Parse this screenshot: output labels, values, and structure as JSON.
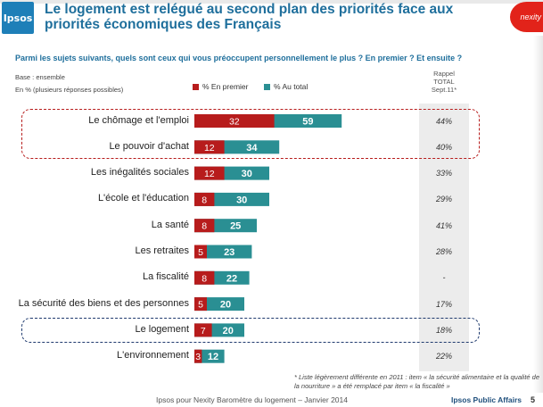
{
  "header": {
    "logo_text": "Ipsos",
    "title": "Le logement est relégué au second plan des priorités face aux priorités économiques des Français",
    "brand_text": "nexity"
  },
  "question": "Parmi les sujets suivants, quels sont ceux qui vous préoccupent personnellement le plus ? En premier ? Et ensuite ?",
  "base_note": "Base : ensemble",
  "unit_note": "En % (plusieurs réponses possibles)",
  "rappel_header": [
    "Rappel",
    "TOTAL",
    "Sept.11*"
  ],
  "colors": {
    "first": "#b71c1c",
    "total": "#2a8f93",
    "highlight_red": "#b71c1c",
    "highlight_blue": "#1f3a6e",
    "title": "#1f6f9c"
  },
  "chart_data": {
    "type": "bar",
    "stacked": true,
    "orientation": "horizontal",
    "series": [
      {
        "name": "% En premier",
        "values": [
          32,
          12,
          12,
          8,
          8,
          5,
          8,
          5,
          7,
          3
        ]
      },
      {
        "name": "% Au total",
        "values": [
          59,
          34,
          30,
          30,
          25,
          23,
          22,
          20,
          20,
          12
        ]
      }
    ],
    "categories": [
      "Le chômage et l'emploi",
      "Le pouvoir d'achat",
      "Les inégalités sociales",
      "L'école et l'éducation",
      "La santé",
      "Les retraites",
      "La fiscalité",
      "La sécurité des biens et des personnes",
      "Le logement",
      "L'environnement"
    ],
    "rappel_sept11": [
      "44%",
      "40%",
      "33%",
      "29%",
      "41%",
      "28%",
      "-",
      "17%",
      "18%",
      "22%"
    ],
    "legend": "top"
  },
  "footnote": "* Liste légèrement différente en 2011 : item « la sécurité alimentaire et la qualité de la nourriture » a été remplacé par item « la fiscalité »",
  "footer": {
    "source": "Ipsos pour Nexity Baromètre du logement – Janvier 2014",
    "brand": "Ipsos Public Affairs",
    "page": "5"
  }
}
